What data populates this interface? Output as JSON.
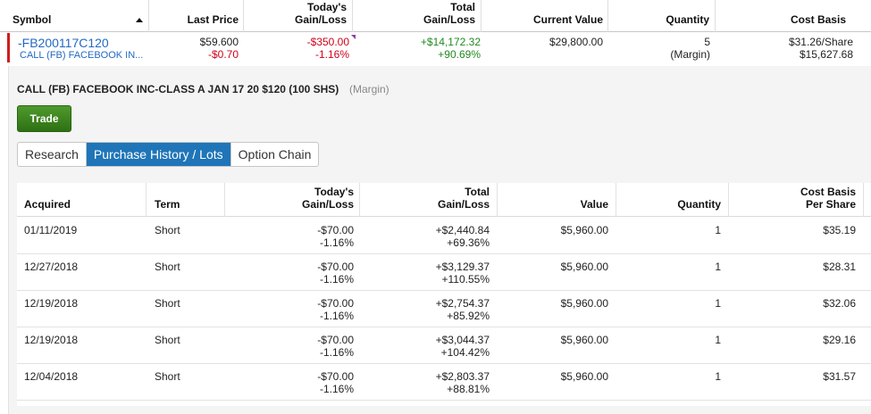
{
  "positions_header": {
    "symbol": "Symbol",
    "last_price": "Last Price",
    "todays_gain_loss": "Today's\nGain/Loss",
    "total_gain_loss": "Total\nGain/Loss",
    "current_value": "Current Value",
    "quantity": "Quantity",
    "cost_basis": "Cost Basis"
  },
  "position": {
    "symbol": "-FB200117C120",
    "description": "CALL (FB) FACEBOOK IN...",
    "last_price": "$59.600",
    "last_price_change": "-$0.70",
    "todays_gain_loss": "-$350.00",
    "todays_gain_loss_pct": "-1.16%",
    "total_gain_loss": "+$14,172.32",
    "total_gain_loss_pct": "+90.69%",
    "current_value": "$29,800.00",
    "quantity": "5",
    "quantity_note": "(Margin)",
    "cost_basis_per_share": "$31.26/Share",
    "cost_basis_total": "$15,627.68"
  },
  "detail": {
    "title": "CALL (FB) FACEBOOK INC-CLASS A JAN 17 20 $120 (100 SHS)",
    "account_type": "(Margin)",
    "trade_label": "Trade",
    "tabs": [
      {
        "label": "Research",
        "active": false
      },
      {
        "label": "Purchase History / Lots",
        "active": true
      },
      {
        "label": "Option Chain",
        "active": false
      }
    ]
  },
  "lots_header": {
    "acquired": "Acquired",
    "term": "Term",
    "todays_gain_loss": "Today's\nGain/Loss",
    "total_gain_loss": "Total\nGain/Loss",
    "value": "Value",
    "quantity": "Quantity",
    "cost_basis_per_share": "Cost Basis\nPer Share"
  },
  "lots": [
    {
      "acquired": "01/11/2019",
      "term": "Short",
      "todays_gl": "-$70.00",
      "todays_gl_pct": "-1.16%",
      "total_gl": "+$2,440.84",
      "total_gl_pct": "+69.36%",
      "value": "$5,960.00",
      "quantity": "1",
      "cost_basis": "$35.19"
    },
    {
      "acquired": "12/27/2018",
      "term": "Short",
      "todays_gl": "-$70.00",
      "todays_gl_pct": "-1.16%",
      "total_gl": "+$3,129.37",
      "total_gl_pct": "+110.55%",
      "value": "$5,960.00",
      "quantity": "1",
      "cost_basis": "$28.31"
    },
    {
      "acquired": "12/19/2018",
      "term": "Short",
      "todays_gl": "-$70.00",
      "todays_gl_pct": "-1.16%",
      "total_gl": "+$2,754.37",
      "total_gl_pct": "+85.92%",
      "value": "$5,960.00",
      "quantity": "1",
      "cost_basis": "$32.06"
    },
    {
      "acquired": "12/19/2018",
      "term": "Short",
      "todays_gl": "-$70.00",
      "todays_gl_pct": "-1.16%",
      "total_gl": "+$3,044.37",
      "total_gl_pct": "+104.42%",
      "value": "$5,960.00",
      "quantity": "1",
      "cost_basis": "$29.16"
    },
    {
      "acquired": "12/04/2018",
      "term": "Short",
      "todays_gl": "-$70.00",
      "todays_gl_pct": "-1.16%",
      "total_gl": "+$2,803.37",
      "total_gl_pct": "+88.81%",
      "value": "$5,960.00",
      "quantity": "1",
      "cost_basis": "$31.57"
    }
  ],
  "colors": {
    "negative": "#d0021b",
    "positive": "#1f8a1f",
    "link": "#2369c2",
    "active_tab": "#1f75b8",
    "trade_button": "#3c8520"
  }
}
